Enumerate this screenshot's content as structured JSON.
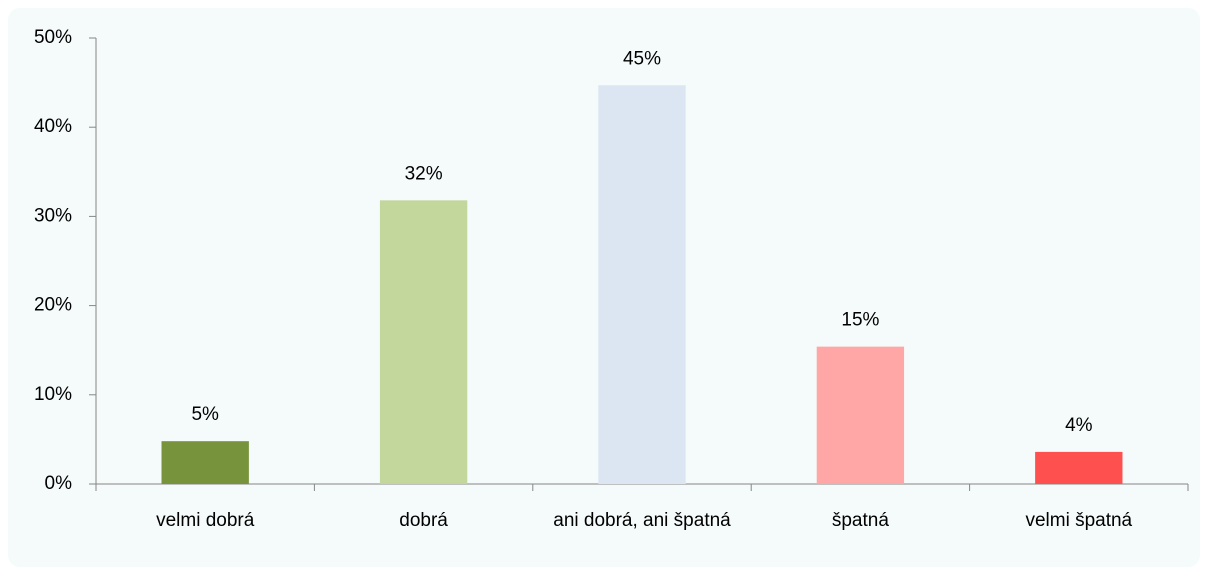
{
  "chart_data": {
    "type": "bar",
    "categories": [
      "velmi dobrá",
      "dobrá",
      "ani dobrá, ani špatná",
      "špatná",
      "velmi špatná"
    ],
    "values": [
      4.8,
      31.8,
      44.7,
      15.4,
      3.6
    ],
    "value_labels": [
      "5%",
      "32%",
      "45%",
      "15%",
      "4%"
    ],
    "colors": [
      "#77933c",
      "#c3d69b",
      "#dce6f2",
      "#ffa7a7",
      "#ff5050"
    ],
    "ylim": [
      0,
      50
    ],
    "yticks": [
      {
        "value": 0,
        "label": "0%"
      },
      {
        "value": 10,
        "label": "10%"
      },
      {
        "value": 20,
        "label": "20%"
      },
      {
        "value": 30,
        "label": "30%"
      },
      {
        "value": 40,
        "label": "40%"
      },
      {
        "value": 50,
        "label": "50%"
      }
    ],
    "grid": false
  }
}
